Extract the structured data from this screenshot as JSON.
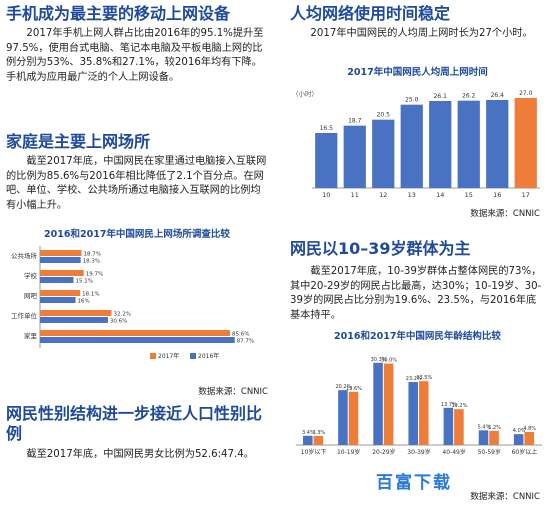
{
  "sections": {
    "s1": {
      "heading": "手机成为最主要的移动上网设备",
      "body": "2017年手机上网人群占比由2016年的95.1%提升至97.5%，使用台式电脑、笔记本电脑及平板电脑上网的比例分别为53%、35.8%和27.1%，较2016年均有下降。手机成为应用最广泛的个人上网设备。"
    },
    "s2": {
      "heading": "家庭是主要上网场所",
      "body": "截至2017年底，中国网民在家里通过电脑接入互联网的比例为85.6%与2016年相比降低了2.1个百分点。在网吧、单位、学校、公共场所通过电脑接入互联网的比例均有小幅上升。"
    },
    "s3": {
      "heading": "网民性别结构进一步接近人口性别比例",
      "body": "截至2017年底，中国网民男女比例为52.6:47.4。"
    },
    "s4": {
      "heading": "人均网络使用时间稳定",
      "body": "2017年中国网民的人均周上网时长为27个小时。"
    },
    "s5": {
      "heading": "网民以10–39岁群体为主",
      "body": "截至2017年底，10-39岁群体占整体网民的73%，其中20-29岁的网民占比最高，达30%；10-19岁、30-39岁的网民占比分别为19.6%、23.5%，与2016年底基本持平。"
    }
  },
  "source_label": "数据来源：CNNIC",
  "watermark": "百富下载",
  "chart_data": [
    {
      "type": "bar",
      "orientation": "horizontal",
      "title": "2016和2017年中国网民上网场所调查比较",
      "categories": [
        "公共场所",
        "学校",
        "网吧",
        "工作单位",
        "家里"
      ],
      "series": [
        {
          "name": "2017年",
          "values": [
            18.7,
            19.7,
            18.1,
            32.2,
            85.6
          ],
          "color": "#ee7d3a"
        },
        {
          "name": "2016年",
          "values": [
            18.3,
            15.1,
            16.0,
            30.6,
            87.7
          ],
          "color": "#4a72c2"
        }
      ],
      "xlim": [
        0,
        100
      ],
      "legend_position": "bottom-right"
    },
    {
      "type": "bar",
      "title": "2017年中国网民人均周上网时间",
      "ylabel": "（小时）",
      "categories": [
        "10",
        "11",
        "12",
        "13",
        "14",
        "15",
        "16",
        "17"
      ],
      "values": [
        16.5,
        18.7,
        20.5,
        25.0,
        26.1,
        26.2,
        26.4,
        27.0
      ],
      "ylim": [
        0,
        30
      ],
      "bar_colors": [
        "#4a72c2",
        "#4a72c2",
        "#4a72c2",
        "#4a72c2",
        "#4a72c2",
        "#4a72c2",
        "#4a72c2",
        "#ee7d3a"
      ]
    },
    {
      "type": "bar",
      "title": "2016和2017年中国网民年龄结构比较",
      "categories": [
        "10岁以下",
        "10-19岁",
        "20-29岁",
        "30-39岁",
        "40-49岁",
        "50-59岁",
        "60岁以上"
      ],
      "series": [
        {
          "name": "2016年",
          "values": [
            3.4,
            20.2,
            30.3,
            23.2,
            13.7,
            5.4,
            4.0
          ],
          "color": "#4a72c2"
        },
        {
          "name": "2017年",
          "values": [
            3.3,
            19.6,
            30.0,
            23.5,
            13.2,
            5.2,
            4.8
          ],
          "color": "#ee7d3a"
        }
      ],
      "ylim": [
        0,
        35
      ]
    }
  ]
}
